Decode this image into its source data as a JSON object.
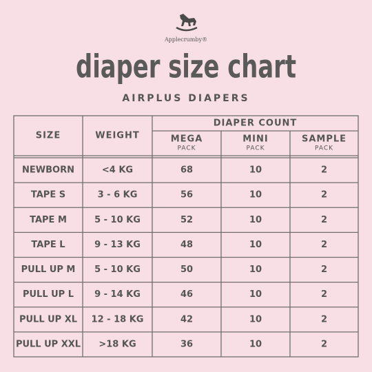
{
  "header": {
    "brand": "Applecrumby®",
    "title": "diaper size chart",
    "subtitle": "AIRPLUS DIAPERS"
  },
  "table": {
    "columns": [
      "SIZE",
      "WEIGHT"
    ],
    "group": "DIAPER COUNT",
    "subcolumns": [
      {
        "name": "MEGA",
        "sub": "PACK"
      },
      {
        "name": "MINI",
        "sub": "PACK"
      },
      {
        "name": "SAMPLE",
        "sub": "PACK"
      }
    ],
    "rows": [
      [
        "NEWBORN",
        "<4 KG",
        68,
        10,
        2
      ],
      [
        "TAPE S",
        "3 - 6 KG",
        56,
        10,
        2
      ],
      [
        "TAPE M",
        "5 - 10 KG",
        52,
        10,
        2
      ],
      [
        "TAPE L",
        "9 - 13 KG",
        48,
        10,
        2
      ],
      [
        "PULL UP M",
        "5 - 10 KG",
        50,
        10,
        2
      ],
      [
        "PULL UP L",
        "9 - 14 KG",
        46,
        10,
        2
      ],
      [
        "PULL UP XL",
        "12 - 18 KG",
        42,
        10,
        2
      ],
      [
        "PULL UP XXL",
        ">18 KG",
        36,
        10,
        2
      ]
    ]
  }
}
